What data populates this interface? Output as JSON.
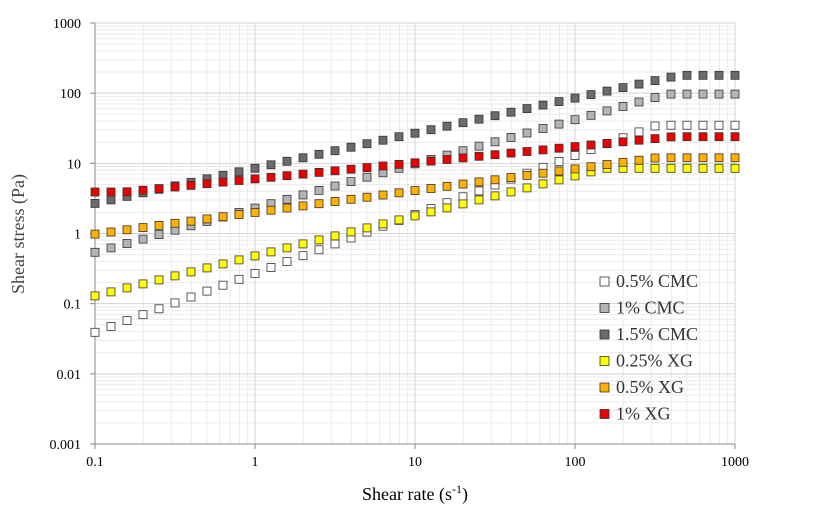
{
  "chart_data": {
    "type": "scatter",
    "xscale": "log",
    "yscale": "log",
    "xlim": [
      0.1,
      1000
    ],
    "ylim": [
      0.001,
      1000
    ],
    "xlabel_main": "Shear rate (s",
    "xlabel_sup": "-1",
    "xlabel_end": ")",
    "ylabel": "Shear stress (Pa)",
    "xticks": [
      "0.1",
      "1",
      "10",
      "100",
      "1000"
    ],
    "yticks": [
      "0.001",
      "0.01",
      "0.1",
      "1",
      "10",
      "100",
      "1000"
    ],
    "grid": "major and minor",
    "legend_position": "bottom-right",
    "points_per_series": 41,
    "series": [
      {
        "name": "0.5% CMC",
        "color": "#ffffff",
        "k": 0.27,
        "n": 0.84,
        "min": 0.0345,
        "max": 35
      },
      {
        "name": "1% CMC",
        "color": "#b4b4b4",
        "k": 2.3,
        "n": 0.63,
        "min": 0.3,
        "max": 97
      },
      {
        "name": "1.5% CMC",
        "color": "#6b6b6b",
        "k": 8.5,
        "n": 0.5,
        "min": 1.4,
        "max": 180
      },
      {
        "name": "0.25% XG",
        "color": "#ffff00",
        "k": 0.48,
        "n": 0.57,
        "min": 0.12,
        "max": 8.5
      },
      {
        "name": "0.5% XG",
        "color": "#ffb000",
        "k": 2.0,
        "n": 0.31,
        "min": 0.85,
        "max": 12
      },
      {
        "name": "1% XG",
        "color": "#ee0000",
        "k": 6.0,
        "n": 0.23,
        "min": 3.9,
        "max": 24
      }
    ]
  }
}
